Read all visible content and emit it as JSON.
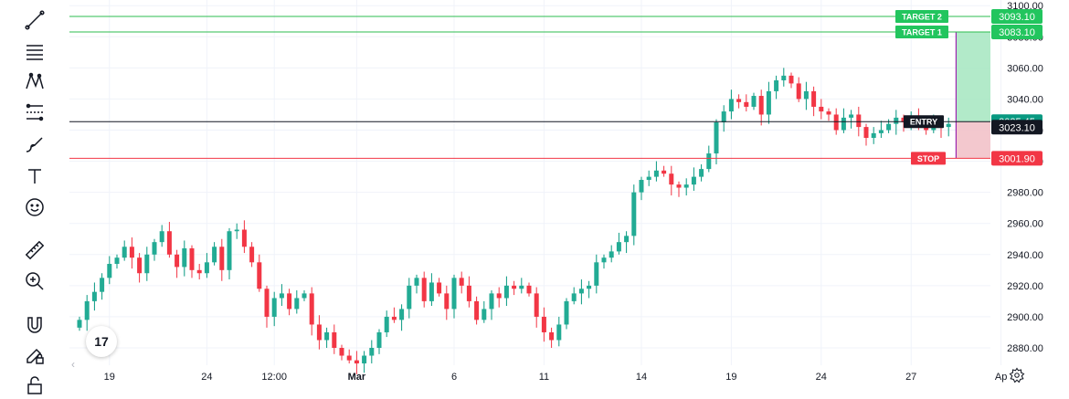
{
  "toolbar": {
    "tools": [
      {
        "icon": "trend-line-icon"
      },
      {
        "icon": "horizontal-lines-icon"
      },
      {
        "icon": "pattern-icon"
      },
      {
        "icon": "fib-retracement-icon"
      },
      {
        "icon": "brush-icon"
      },
      {
        "icon": "text-tool-icon",
        "glyph": "T"
      },
      {
        "icon": "emoji-icon"
      },
      {
        "icon": "ruler-icon"
      },
      {
        "icon": "zoom-in-icon"
      },
      {
        "icon": "magnet-icon"
      },
      {
        "icon": "lock-drawings-icon"
      },
      {
        "icon": "unlock-icon"
      }
    ]
  },
  "logo": {
    "text": "17"
  },
  "colors": {
    "up": "#089981",
    "down": "#f23645",
    "up_body": "#22ab94",
    "down_body": "#f23645",
    "target": "#2ebd4f",
    "stop": "#f23645",
    "entry": "#131722",
    "profit_zone": "#a5e6bf",
    "loss_zone": "#f2c2c9",
    "grid": "#f0f3fa",
    "last_price": "#089981"
  },
  "chart_data": {
    "type": "candlestick",
    "title": "",
    "xlabel": "",
    "ylabel": "",
    "ylim": [
      2868,
      3105
    ],
    "y_ticks": [
      "2880.00",
      "2900.00",
      "2920.00",
      "2940.00",
      "2960.00",
      "2980.00",
      "3000.00",
      "3020.00",
      "3040.00",
      "3060.00",
      "3080.00",
      "3100.00"
    ],
    "x_ticks": [
      {
        "label": "19",
        "bar": 4
      },
      {
        "label": "24",
        "bar": 17
      },
      {
        "label": "12:00",
        "bar": 26
      },
      {
        "label": "Mar",
        "bar": 37
      },
      {
        "label": "6",
        "bar": 50
      },
      {
        "label": "11",
        "bar": 62
      },
      {
        "label": "14",
        "bar": 75
      },
      {
        "label": "19",
        "bar": 87
      },
      {
        "label": "24",
        "bar": 99
      },
      {
        "label": "27",
        "bar": 111
      },
      {
        "label": "Ap",
        "bar": 123
      }
    ],
    "close": [
      2898,
      2910,
      2916,
      2925,
      2934,
      2938,
      2945,
      2938,
      2928,
      2940,
      2948,
      2955,
      2940,
      2932,
      2944,
      2930,
      2928,
      2935,
      2945,
      2930,
      2955,
      2956,
      2945,
      2935,
      2918,
      2900,
      2912,
      2915,
      2905,
      2912,
      2915,
      2895,
      2885,
      2890,
      2880,
      2875,
      2872,
      2870,
      2875,
      2880,
      2890,
      2900,
      2898,
      2905,
      2920,
      2925,
      2910,
      2922,
      2915,
      2905,
      2925,
      2920,
      2910,
      2898,
      2905,
      2915,
      2912,
      2920,
      2918,
      2920,
      2915,
      2900,
      2890,
      2885,
      2895,
      2910,
      2915,
      2918,
      2920,
      2935,
      2938,
      2942,
      2948,
      2952,
      2980,
      2988,
      2990,
      2994,
      2992,
      2985,
      2983,
      2985,
      2990,
      2995,
      3005,
      3025,
      3032,
      3040,
      3038,
      3035,
      3042,
      3030,
      3045,
      3052,
      3055,
      3050,
      3040,
      3045,
      3035,
      3032,
      3030,
      3020,
      3028,
      3030,
      3022,
      3015,
      3018,
      3020,
      3024,
      3028,
      3025,
      3028,
      3024,
      3020,
      3025,
      3022,
      3024
    ],
    "entry": {
      "label": "ENTRY",
      "price": 3025.45,
      "price_label": "3025.45"
    },
    "stop": {
      "label": "STOP",
      "price": 3001.9,
      "price_label": "3001.90"
    },
    "targets": [
      {
        "label": "TARGET 2",
        "price": 3093.1,
        "price_label": "3093.10"
      },
      {
        "label": "TARGET 1",
        "price": 3083.1,
        "price_label": "3083.10"
      }
    ],
    "last_price": {
      "price": 3023.1,
      "label": "3023.10"
    },
    "position_start_bar": 117
  }
}
